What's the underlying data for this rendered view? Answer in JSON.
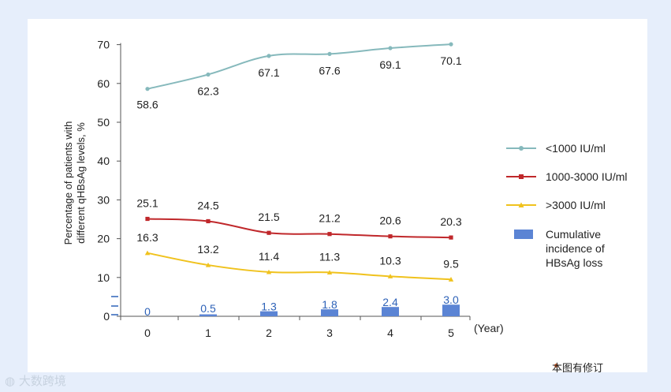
{
  "chart_data": {
    "type": "line",
    "ylabel_lines": [
      "Percentage of patients with",
      "different qHBsAg levels, %"
    ],
    "xlabel": "(Year)",
    "categories": [
      "0",
      "1",
      "2",
      "3",
      "4",
      "5"
    ],
    "ylim": [
      0,
      70
    ],
    "yticks": [
      "0",
      "10",
      "20",
      "30",
      "40",
      "50",
      "60",
      "70"
    ],
    "series": [
      {
        "name": "<1000 IU/ml",
        "type": "line",
        "color": "#86b9bc",
        "marker": "circle",
        "values": [
          58.6,
          62.3,
          67.1,
          67.6,
          69.1,
          70.1
        ],
        "labels": [
          "58.6",
          "62.3",
          "67.1",
          "67.6",
          "69.1",
          "70.1"
        ]
      },
      {
        "name": "1000-3000 IU/ml",
        "type": "line",
        "color": "#c0282b",
        "marker": "square",
        "values": [
          25.1,
          24.5,
          21.5,
          21.2,
          20.6,
          20.3
        ],
        "labels": [
          "25.1",
          "24.5",
          "21.5",
          "21.2",
          "20.6",
          "20.3"
        ]
      },
      {
        "name": ">3000 IU/ml",
        "type": "line",
        "color": "#f0c21d",
        "marker": "triangle",
        "values": [
          16.3,
          13.2,
          11.4,
          11.3,
          10.3,
          9.5
        ],
        "labels": [
          "16.3",
          "13.2",
          "11.4",
          "11.3",
          "10.3",
          "9.5"
        ]
      },
      {
        "name": "Cumulative incidence of HBsAg loss",
        "type": "bar",
        "color": "#5b84d4",
        "values": [
          0,
          0.5,
          1.3,
          1.8,
          2.4,
          3.0
        ],
        "labels": [
          "0",
          "0.5",
          "1.3",
          "1.8",
          "2.4",
          "3.0"
        ]
      }
    ],
    "legend_position": "right",
    "legend_lines": [
      [
        "<1000 IU/ml"
      ],
      [
        "1000-3000 IU/ml"
      ],
      [
        ">3000 IU/ml"
      ],
      [
        "Cumulative",
        "incidence of",
        "HBsAg loss"
      ]
    ],
    "grid": false
  },
  "footnote": "本图有修订",
  "watermark": "大数跨境"
}
